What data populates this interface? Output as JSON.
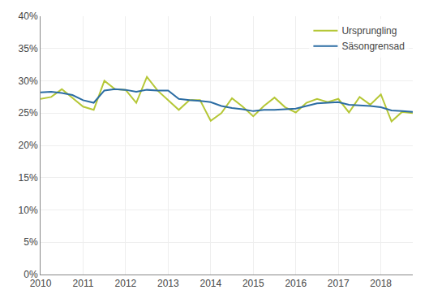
{
  "chart_data": {
    "type": "line",
    "x": [
      2010,
      2010.25,
      2010.5,
      2010.75,
      2011,
      2011.25,
      2011.5,
      2011.75,
      2012,
      2012.25,
      2012.5,
      2012.75,
      2013,
      2013.25,
      2013.5,
      2013.75,
      2014,
      2014.25,
      2014.5,
      2014.75,
      2015,
      2015.25,
      2015.5,
      2015.75,
      2016,
      2016.25,
      2016.5,
      2016.75,
      2017,
      2017.25,
      2017.5,
      2017.75,
      2018,
      2018.25,
      2018.5,
      2018.75
    ],
    "series": [
      {
        "name": "Ursprungling",
        "color": "#b5c736",
        "values": [
          27.2,
          27.5,
          28.7,
          27.3,
          26.0,
          25.5,
          30.0,
          28.7,
          28.6,
          26.6,
          30.6,
          28.5,
          27.0,
          25.5,
          27.0,
          27.0,
          23.8,
          25.0,
          27.3,
          26.0,
          24.5,
          26.1,
          27.4,
          25.9,
          25.1,
          26.6,
          27.2,
          26.7,
          27.2,
          25.1,
          27.5,
          26.3,
          27.9,
          23.7,
          25.2,
          25.0
        ]
      },
      {
        "name": "Säsongrensad",
        "color": "#2b6ca3",
        "values": [
          28.2,
          28.3,
          28.1,
          27.8,
          27.0,
          26.6,
          28.5,
          28.7,
          28.6,
          28.3,
          28.6,
          28.5,
          28.5,
          27.2,
          27.0,
          26.9,
          26.7,
          26.1,
          25.8,
          25.6,
          25.3,
          25.5,
          25.5,
          25.6,
          25.7,
          26.1,
          26.5,
          26.6,
          26.7,
          26.3,
          26.2,
          26.1,
          25.9,
          25.4,
          25.3,
          25.2
        ]
      }
    ],
    "xlim": [
      2010,
      2018.75
    ],
    "xticks": [
      2010,
      2011,
      2012,
      2013,
      2014,
      2015,
      2016,
      2017,
      2018
    ],
    "ylim": [
      0,
      40
    ],
    "yticks": [
      {
        "value": 0,
        "label": "0%"
      },
      {
        "value": 5,
        "label": "5%"
      },
      {
        "value": 10,
        "label": "10%"
      },
      {
        "value": 15,
        "label": "15%"
      },
      {
        "value": 20,
        "label": "20%"
      },
      {
        "value": 25,
        "label": "25%"
      },
      {
        "value": 30,
        "label": "30%"
      },
      {
        "value": 35,
        "label": "35%"
      },
      {
        "value": 40,
        "label": "40%"
      }
    ],
    "grid": true,
    "legend": "upper right"
  }
}
